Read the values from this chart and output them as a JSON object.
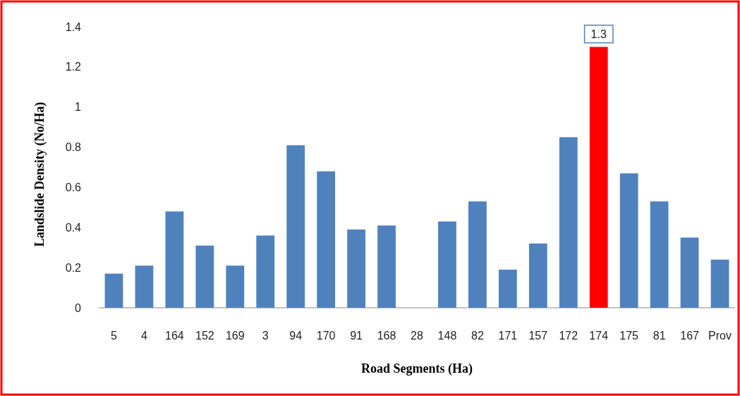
{
  "chart_data": {
    "type": "bar",
    "xlabel": "Road Segments (Ha)",
    "ylabel": "Landslide Density (No/Ha)",
    "categories": [
      "5",
      "4",
      "164",
      "152",
      "169",
      "3",
      "94",
      "170",
      "91",
      "168",
      "28",
      "148",
      "82",
      "171",
      "157",
      "172",
      "174",
      "175",
      "81",
      "167",
      "Prov"
    ],
    "values": [
      0.17,
      0.21,
      0.48,
      0.31,
      0.21,
      0.36,
      0.81,
      0.68,
      0.39,
      0.41,
      0,
      0.43,
      0.53,
      0.19,
      0.32,
      0.85,
      1.3,
      0.67,
      0.53,
      0.35,
      0.24
    ],
    "colors": [
      "#4f81bd",
      "#4f81bd",
      "#4f81bd",
      "#4f81bd",
      "#4f81bd",
      "#4f81bd",
      "#4f81bd",
      "#4f81bd",
      "#4f81bd",
      "#4f81bd",
      "#4f81bd",
      "#4f81bd",
      "#4f81bd",
      "#4f81bd",
      "#4f81bd",
      "#4f81bd",
      "#ff0000",
      "#4f81bd",
      "#4f81bd",
      "#4f81bd",
      "#4f81bd"
    ],
    "value_labels": [
      null,
      null,
      null,
      null,
      null,
      null,
      null,
      null,
      null,
      null,
      null,
      null,
      null,
      null,
      null,
      null,
      "1.3",
      null,
      null,
      null,
      null
    ],
    "ylim": [
      0,
      1.4
    ],
    "yticks": [
      0,
      0.2,
      0.4,
      0.6,
      0.8,
      1,
      1.2,
      1.4
    ]
  }
}
